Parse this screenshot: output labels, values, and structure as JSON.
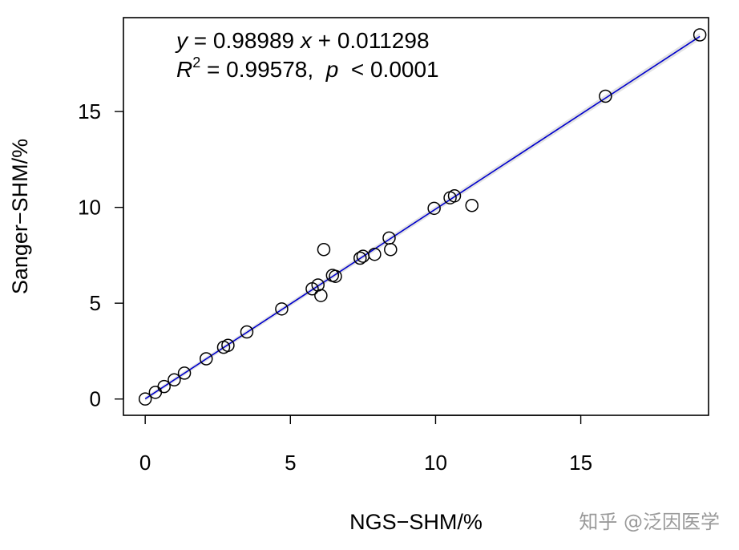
{
  "chart_data": {
    "type": "scatter",
    "title": "",
    "xlabel": "NGS−SHM/%",
    "ylabel": "Sanger−SHM/%",
    "xlim": [
      -0.75,
      19.4
    ],
    "ylim": [
      -0.85,
      19.9
    ],
    "x_ticks": [
      0,
      5,
      10,
      15
    ],
    "y_ticks": [
      0,
      5,
      10,
      15
    ],
    "grid": false,
    "regression": {
      "slope": 0.98989,
      "intercept": 0.011298,
      "color": "#0000cc",
      "ci_color": "#e3e3e3",
      "equation_parts": {
        "y": "y",
        "eq_mid": " = 0.98989 ",
        "x": "x",
        "eq_tail": " + 0.011298",
        "r": "R",
        "r_sup": "2",
        "r_mid": " = 0.99578,  ",
        "p": "p",
        "p_tail": "  < 0.0001"
      }
    },
    "points": [
      {
        "x": 0.0,
        "y": 0.0
      },
      {
        "x": 0.35,
        "y": 0.35
      },
      {
        "x": 0.65,
        "y": 0.65
      },
      {
        "x": 1.0,
        "y": 1.0
      },
      {
        "x": 1.35,
        "y": 1.35
      },
      {
        "x": 2.1,
        "y": 2.1
      },
      {
        "x": 2.7,
        "y": 2.7
      },
      {
        "x": 2.85,
        "y": 2.8
      },
      {
        "x": 3.5,
        "y": 3.5
      },
      {
        "x": 4.7,
        "y": 4.7
      },
      {
        "x": 5.75,
        "y": 5.75
      },
      {
        "x": 5.95,
        "y": 5.95
      },
      {
        "x": 6.05,
        "y": 5.4
      },
      {
        "x": 6.15,
        "y": 7.8
      },
      {
        "x": 6.45,
        "y": 6.45
      },
      {
        "x": 6.55,
        "y": 6.4
      },
      {
        "x": 7.4,
        "y": 7.35
      },
      {
        "x": 7.5,
        "y": 7.45
      },
      {
        "x": 7.9,
        "y": 7.55
      },
      {
        "x": 8.4,
        "y": 8.4
      },
      {
        "x": 8.45,
        "y": 7.8
      },
      {
        "x": 9.95,
        "y": 9.95
      },
      {
        "x": 10.5,
        "y": 10.5
      },
      {
        "x": 10.65,
        "y": 10.6
      },
      {
        "x": 11.25,
        "y": 10.1
      },
      {
        "x": 15.85,
        "y": 15.8
      },
      {
        "x": 19.1,
        "y": 19.0
      }
    ]
  },
  "watermark": "知乎 @泛因医学"
}
